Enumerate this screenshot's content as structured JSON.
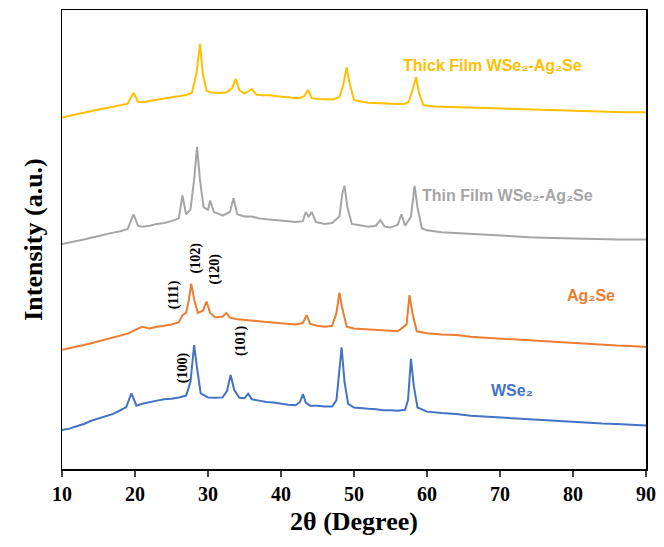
{
  "chart_data": {
    "type": "line",
    "xlabel": "2θ (Degree)",
    "ylabel": "Intensity (a.u.)",
    "xlim": [
      10,
      90
    ],
    "xticks": [
      10,
      20,
      30,
      40,
      50,
      60,
      70,
      80,
      90
    ],
    "ylim": [
      0,
      100
    ],
    "yticks": [],
    "tick_labels": "x",
    "grid": false,
    "series": [
      {
        "name": "Thick Film WSe₂-Ag₂Se",
        "color": "#FFC000",
        "label_x": 69,
        "label_y": 88,
        "x": [
          10,
          11,
          12,
          13,
          14,
          15,
          16,
          17,
          18,
          19,
          19.8,
          20.4,
          21,
          22,
          23,
          24,
          25,
          26,
          27,
          27.8,
          28.4,
          28.9,
          29.3,
          29.8,
          30.5,
          31.5,
          32.5,
          33.3,
          33.8,
          34.3,
          35,
          36,
          36.6,
          37.5,
          38.5,
          39.5,
          40.5,
          41.5,
          42.5,
          43.2,
          43.7,
          44.2,
          45,
          46,
          47,
          48,
          48.5,
          49,
          49.4,
          50,
          51,
          52,
          53,
          54,
          55,
          56,
          57,
          57.5,
          58.1,
          58.5,
          58.9,
          59.5,
          61,
          63,
          65,
          67,
          69,
          71,
          73,
          75,
          77,
          79,
          81,
          83,
          85,
          87,
          90
        ],
        "values": [
          76.6,
          77,
          77.3,
          77.6,
          78,
          78.3,
          78.6,
          78.9,
          79.2,
          79.6,
          82,
          80,
          79.9,
          80.2,
          80.5,
          80.8,
          81,
          81.2,
          81.5,
          82,
          86,
          92.6,
          86,
          82.4,
          82,
          81.9,
          82,
          83,
          85,
          82.5,
          81.8,
          82.8,
          81.6,
          81.4,
          81.4,
          81.2,
          81,
          80.9,
          80.8,
          81.2,
          82.6,
          80.8,
          80.6,
          80.5,
          80.5,
          81,
          83.5,
          87.5,
          84,
          80.4,
          80,
          79.8,
          79.7,
          79.6,
          79.6,
          79.5,
          79.6,
          80,
          83,
          85.4,
          82,
          79.3,
          79,
          78.9,
          78.8,
          78.7,
          78.6,
          78.4,
          78.3,
          78.2,
          78.1,
          78,
          77.9,
          77.8,
          77.7,
          77.7,
          77.7
        ]
      },
      {
        "name": "Thin Film WSe₂-Ag₂Se",
        "color": "#A5A5A5",
        "label_x": 71,
        "label_y": 59.6,
        "x": [
          10,
          11,
          12,
          13,
          14,
          15,
          16,
          17,
          18,
          19,
          19.8,
          20.4,
          21,
          22,
          23,
          24,
          25,
          26,
          26.5,
          27,
          27.6,
          28.1,
          28.5,
          28.9,
          29.4,
          30,
          30.3,
          30.8,
          31.5,
          32,
          33,
          33.5,
          34,
          35,
          36,
          37,
          38,
          39,
          40,
          41,
          42,
          43,
          43.4,
          43.8,
          44.2,
          44.8,
          46,
          47,
          48,
          48.4,
          48.7,
          49.1,
          49.7,
          51,
          52,
          53,
          53.6,
          54.2,
          55,
          56,
          56.5,
          57,
          57.8,
          58.3,
          58.7,
          59.3,
          60,
          62,
          64,
          66,
          68,
          70,
          72,
          74,
          76,
          78,
          80,
          82,
          84,
          86,
          88,
          90
        ],
        "values": [
          49,
          49.3,
          49.6,
          50,
          50.4,
          50.8,
          51.2,
          51.5,
          51.8,
          52.3,
          55.5,
          53,
          52.8,
          53,
          53.4,
          53.6,
          54,
          54.6,
          59.6,
          55.5,
          56.5,
          63,
          70.2,
          63,
          57,
          56.5,
          58.5,
          56,
          55.6,
          55.2,
          56,
          59,
          55.5,
          55,
          55,
          54.6,
          54.4,
          54.3,
          54.2,
          54,
          53.8,
          54,
          56,
          55,
          56,
          53.8,
          53.4,
          53.6,
          55,
          60,
          61.7,
          57,
          53.4,
          53,
          52.8,
          53,
          54.2,
          52.8,
          52.6,
          53.2,
          55.5,
          53,
          55,
          61.7,
          57,
          52.4,
          52,
          51.6,
          51.4,
          51.2,
          51,
          50.8,
          50.6,
          50.5,
          50.4,
          50.3,
          50.2,
          50.2,
          50.1,
          50,
          50,
          50
        ]
      },
      {
        "name": "Ag₂Se",
        "color": "#ED7D31",
        "label_x": 82.5,
        "label_y": 37.7,
        "x": [
          10,
          11,
          12,
          13,
          14,
          15,
          16,
          17,
          18,
          19,
          20,
          21,
          22,
          23,
          24,
          25,
          26,
          26.5,
          27,
          27.4,
          27.7,
          28.1,
          28.6,
          29.3,
          29.8,
          30.3,
          31,
          32,
          32.5,
          33,
          34,
          35,
          36,
          37,
          38,
          39,
          40,
          41,
          42,
          43,
          43.5,
          44,
          45,
          46,
          47,
          47.6,
          48,
          48.4,
          49,
          50,
          52,
          54,
          56,
          57.2,
          57.6,
          58,
          58.6,
          60,
          62,
          64,
          66,
          68,
          70,
          72,
          74,
          76,
          78,
          80,
          82,
          84,
          86,
          88,
          90
        ],
        "values": [
          26,
          26.3,
          26.6,
          27,
          27.4,
          27.8,
          28.2,
          28.6,
          29,
          29.5,
          30.3,
          31,
          30.6,
          31,
          31.2,
          31.5,
          32,
          33.5,
          34,
          37,
          40.4,
          37,
          34,
          34.5,
          36.5,
          34,
          33,
          33.2,
          34,
          33,
          32.6,
          32.5,
          32.4,
          32.2,
          32,
          31.9,
          31.8,
          31.6,
          31.5,
          31.8,
          33.5,
          31.6,
          31.2,
          31,
          31.2,
          34,
          38.4,
          35,
          31,
          30.6,
          30.4,
          30.2,
          30,
          31.5,
          37.9,
          34,
          30,
          29.6,
          29.3,
          29.2,
          28.8,
          28.6,
          28.4,
          28.2,
          28,
          27.8,
          27.6,
          27.4,
          27.3,
          27.1,
          26.9,
          26.8,
          26.6
        ]
      },
      {
        "name": "WSe₂",
        "color": "#4472C4",
        "label_x": 71.7,
        "label_y": 17,
        "x": [
          10,
          11,
          12,
          13,
          14,
          15,
          16,
          17,
          18,
          18.8,
          19.5,
          20.2,
          21,
          22,
          23,
          24,
          25,
          26,
          27,
          27.6,
          28.1,
          28.5,
          29,
          30,
          31,
          32,
          32.6,
          33.1,
          33.6,
          34.3,
          35,
          35.5,
          36,
          37,
          38,
          39,
          40,
          41,
          42,
          42.6,
          43,
          43.4,
          44,
          45,
          46,
          47,
          47.6,
          48,
          48.3,
          48.7,
          49.2,
          50,
          51,
          52,
          53,
          54,
          55,
          56,
          57,
          57.4,
          57.8,
          58.2,
          58.7,
          60,
          62,
          64,
          66,
          68,
          70,
          72,
          74,
          76,
          78,
          80,
          82,
          84,
          86,
          88,
          90
        ],
        "values": [
          8.5,
          8.8,
          9.3,
          9.8,
          10.5,
          11,
          11.6,
          12,
          12.8,
          13.5,
          16.5,
          13.8,
          14.2,
          14.6,
          14.9,
          15.2,
          15.3,
          15.6,
          16,
          19,
          27,
          22,
          16.5,
          15.6,
          15.5,
          15.6,
          17,
          20.5,
          17.2,
          15.5,
          15.4,
          16.4,
          15.2,
          14.9,
          14.6,
          14.5,
          14.2,
          14,
          13.9,
          14.6,
          16.3,
          14.4,
          13.8,
          13.8,
          13.6,
          13.6,
          15,
          22,
          26.5,
          19,
          14.2,
          13.4,
          13.2,
          13.1,
          13,
          12.8,
          12.8,
          12.7,
          12.9,
          15,
          24,
          18,
          13.4,
          12.5,
          12.2,
          12,
          11.6,
          11.4,
          11.2,
          11,
          10.8,
          10.6,
          10.4,
          10.2,
          10.1,
          9.9,
          9.8,
          9.6,
          9.5
        ]
      }
    ],
    "annotations": [
      {
        "text": "(100)",
        "x": 26.6,
        "y": 22,
        "color": "#000000"
      },
      {
        "text": "(101)",
        "x": 34.6,
        "y": 28,
        "color": "#000000"
      },
      {
        "text": "(111)",
        "x": 25.3,
        "y": 38,
        "color": "#000000"
      },
      {
        "text": "(102)",
        "x": 28.3,
        "y": 46,
        "color": "#000000"
      },
      {
        "text": "(120)",
        "x": 30.9,
        "y": 43.6,
        "color": "#000000"
      }
    ]
  }
}
